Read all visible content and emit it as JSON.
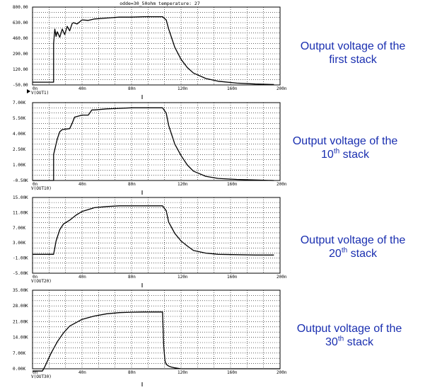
{
  "title": "odde=30_50ohm  temperature: 27",
  "captions": [
    {
      "pre": "Output voltage of the",
      "line2": "first stack",
      "num": "",
      "sup": "",
      "post": ""
    },
    {
      "pre": "Output voltage of the",
      "line2": "",
      "num": "10",
      "sup": "th",
      "post": " stack"
    },
    {
      "pre": "Output voltage of the",
      "line2": "",
      "num": "20",
      "sup": "th",
      "post": " stack"
    },
    {
      "pre": "Output voltage of the",
      "line2": "",
      "num": "30",
      "sup": "th",
      "post": " stack"
    }
  ],
  "colors": {
    "trace": "#000000",
    "grid": "#000000",
    "caption": "#1a2fb0"
  },
  "chart_data": [
    {
      "type": "line",
      "signal": "V(OUT1)",
      "x_ticks": [
        "0n",
        "40n",
        "80n",
        "120n",
        "160n",
        "200n"
      ],
      "y_ticks": [
        "800.00",
        "630.00",
        "460.00",
        "290.00",
        "120.00",
        "-50.00"
      ],
      "xlim": [
        0,
        200
      ],
      "ylim": [
        -50,
        800
      ],
      "grid": true,
      "series": [
        {
          "x": [
            0,
            17,
            17,
            18,
            19,
            20,
            22,
            24,
            26,
            28,
            30,
            32,
            33,
            36,
            40,
            45,
            50,
            60,
            70,
            80,
            90,
            100,
            105,
            108,
            110,
            115,
            120,
            125,
            130,
            140,
            150,
            165,
            180,
            195
          ],
          "y": [
            -20,
            -20,
            400,
            560,
            480,
            530,
            470,
            560,
            500,
            590,
            540,
            620,
            630,
            615,
            660,
            655,
            670,
            680,
            690,
            690,
            695,
            695,
            695,
            660,
            560,
            360,
            230,
            140,
            80,
            20,
            -10,
            -30,
            -40,
            -45
          ]
        }
      ]
    },
    {
      "type": "line",
      "signal": "V(OUT10)",
      "x_ticks": [
        "0n",
        "40n",
        "80n",
        "120n",
        "160n",
        "200n"
      ],
      "y_ticks": [
        "7.00K",
        "5.50K",
        "4.00K",
        "2.50K",
        "1.00K",
        "-0.50K"
      ],
      "xlim": [
        0,
        200
      ],
      "ylim": [
        -0.5,
        7.0
      ],
      "grid": true,
      "series": [
        {
          "x": [
            0,
            17,
            17,
            20,
            22,
            24,
            30,
            32,
            34,
            40,
            45,
            48,
            50,
            60,
            70,
            80,
            90,
            100,
            105,
            108,
            110,
            115,
            120,
            125,
            130,
            140,
            150,
            165,
            180,
            195
          ],
          "y": [
            -0.5,
            -0.5,
            2.0,
            3.5,
            4.2,
            4.4,
            4.5,
            5.0,
            5.6,
            5.8,
            5.8,
            6.3,
            6.3,
            6.4,
            6.45,
            6.5,
            6.5,
            6.5,
            6.5,
            6.0,
            4.8,
            3.0,
            1.9,
            1.0,
            0.4,
            -0.1,
            -0.3,
            -0.4,
            -0.45,
            -0.5
          ]
        }
      ]
    },
    {
      "type": "line",
      "signal": "V(OUT20)",
      "x_ticks": [
        "0n",
        "40n",
        "80n",
        "120n",
        "160n",
        "200n"
      ],
      "y_ticks": [
        "15.00K",
        "11.00K",
        "7.00K",
        "3.00K",
        "-1.00K",
        "-5.00K"
      ],
      "xlim": [
        0,
        200
      ],
      "ylim": [
        -5,
        15
      ],
      "grid": true,
      "series": [
        {
          "x": [
            0,
            17,
            19,
            22,
            25,
            30,
            35,
            40,
            45,
            50,
            60,
            70,
            80,
            90,
            95,
            100,
            105,
            108,
            110,
            115,
            120,
            125,
            130,
            140,
            150,
            165,
            180,
            195
          ],
          "y": [
            0,
            0,
            3.5,
            6.5,
            8.0,
            9.0,
            10.3,
            11.3,
            11.8,
            12.3,
            12.6,
            12.8,
            12.8,
            12.8,
            12.8,
            12.8,
            12.8,
            11.5,
            8.5,
            5.5,
            3.5,
            2.2,
            1.0,
            0.3,
            0,
            -0.1,
            -0.2,
            -0.2
          ]
        }
      ]
    },
    {
      "type": "line",
      "signal": "V(OUT30)",
      "x_ticks": [
        "0n",
        "40n",
        "80n",
        "120n",
        "160n",
        "200n"
      ],
      "y_ticks": [
        "35.00K",
        "28.00K",
        "21.00K",
        "14.00K",
        "7.00K",
        "0.00K"
      ],
      "xlim": [
        0,
        200
      ],
      "ylim": [
        0,
        35
      ],
      "grid": true,
      "series": [
        {
          "x": [
            0,
            8,
            10,
            15,
            20,
            25,
            30,
            40,
            50,
            60,
            70,
            80,
            90,
            100,
            105,
            106,
            107,
            108,
            110,
            112,
            115,
            120,
            130,
            200
          ],
          "y": [
            -1,
            -1,
            1,
            7,
            12,
            16,
            19,
            22,
            23.5,
            24.5,
            25,
            25.2,
            25.3,
            25.3,
            25.3,
            10,
            3.5,
            2.0,
            1.2,
            0.8,
            0.4,
            0,
            0,
            0
          ]
        }
      ]
    }
  ]
}
